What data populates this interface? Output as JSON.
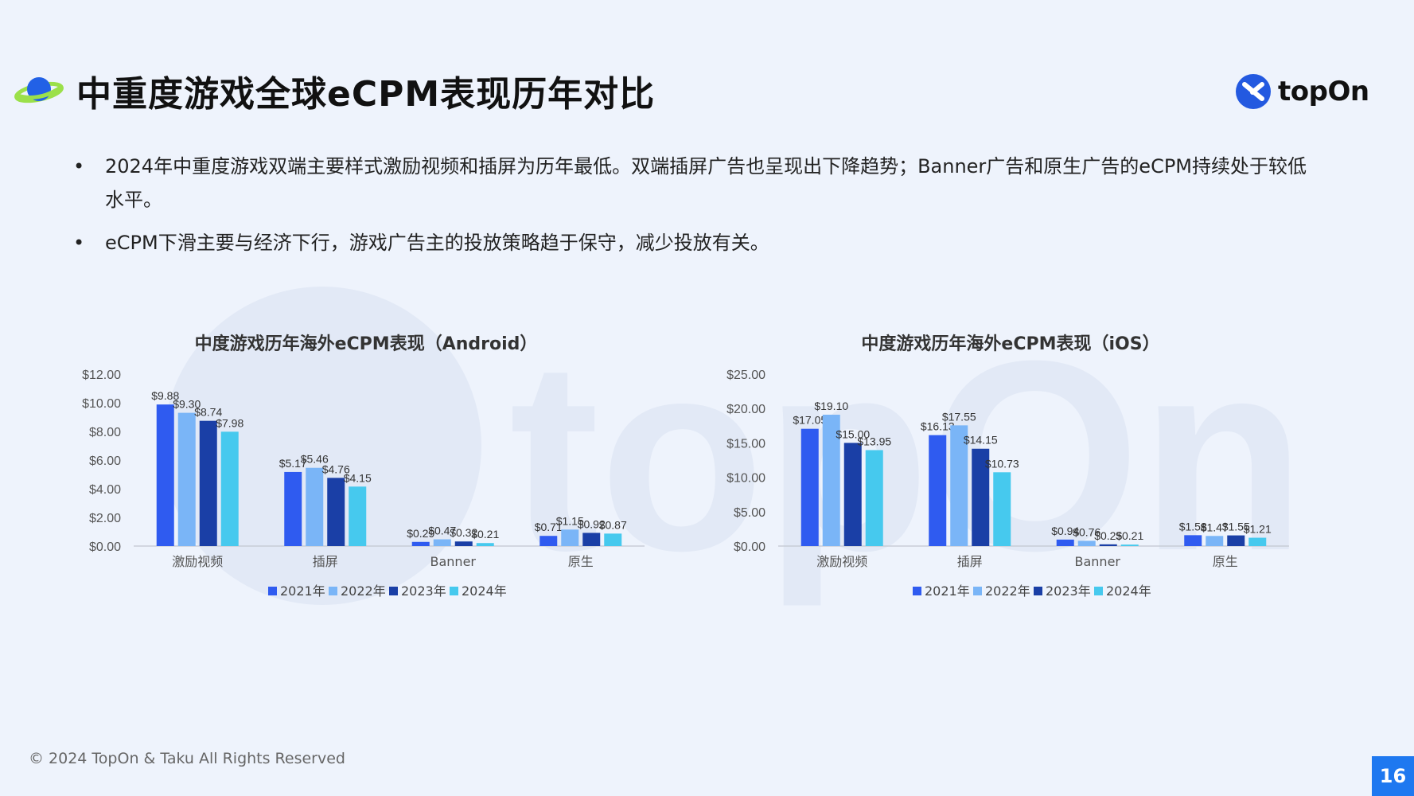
{
  "header": {
    "title": "中重度游戏全球eCPM表现历年对比",
    "logo_text": "topOn"
  },
  "bullets": [
    "2024年中重度游戏双端主要样式激励视频和插屏为历年最低。双端插屏广告也呈现出下降趋势；Banner广告和原生广告的eCPM持续处于较低水平。",
    "eCPM下滑主要与经济下行，游戏广告主的投放策略趋于保守，减少投放有关。"
  ],
  "watermark_text": "topOn",
  "chart_data": [
    {
      "type": "bar",
      "title": "中度游戏历年海外eCPM表现（Android）",
      "categories": [
        "激励视频",
        "插屏",
        "Banner",
        "原生"
      ],
      "series": [
        {
          "name": "2021年",
          "values": [
            9.88,
            5.17,
            0.29,
            0.71
          ]
        },
        {
          "name": "2022年",
          "values": [
            9.3,
            5.46,
            0.47,
            1.15
          ]
        },
        {
          "name": "2023年",
          "values": [
            8.74,
            4.76,
            0.32,
            0.92
          ]
        },
        {
          "name": "2024年",
          "values": [
            7.98,
            4.15,
            0.21,
            0.87
          ]
        }
      ],
      "ylim": [
        0,
        12
      ],
      "yticks": [
        0,
        2,
        4,
        6,
        8,
        10,
        12
      ],
      "ytick_labels": [
        "$0.00",
        "$2.00",
        "$4.00",
        "$6.00",
        "$8.00",
        "$10.00",
        "$12.00"
      ],
      "grid": false,
      "legend": "bottom"
    },
    {
      "type": "bar",
      "title": "中度游戏历年海外eCPM表现（iOS）",
      "categories": [
        "激励视频",
        "插屏",
        "Banner",
        "原生"
      ],
      "series": [
        {
          "name": "2021年",
          "values": [
            17.05,
            16.13,
            0.94,
            1.58
          ]
        },
        {
          "name": "2022年",
          "values": [
            19.1,
            17.55,
            0.76,
            1.47
          ]
        },
        {
          "name": "2023年",
          "values": [
            15.0,
            14.15,
            0.25,
            1.55
          ]
        },
        {
          "name": "2024年",
          "values": [
            13.95,
            10.73,
            0.21,
            1.21
          ]
        }
      ],
      "ylim": [
        0,
        25
      ],
      "yticks": [
        0,
        5,
        10,
        15,
        20,
        25
      ],
      "ytick_labels": [
        "$0.00",
        "$5.00",
        "$10.00",
        "$15.00",
        "$20.00",
        "$25.00"
      ],
      "grid": false,
      "legend": "bottom"
    }
  ],
  "colors": {
    "series": [
      "#2f5bf0",
      "#7ab5f7",
      "#1a3fa6",
      "#46c9ee"
    ],
    "accent": "#1e78f0",
    "background": "#eef3fc"
  },
  "footer": {
    "copyright": "© 2024 TopOn & Taku All Rights Reserved",
    "page_number": "16"
  }
}
